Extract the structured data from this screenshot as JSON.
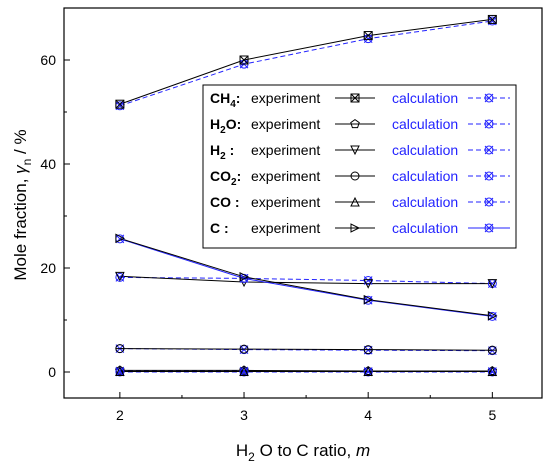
{
  "chart_data": {
    "type": "line",
    "x": [
      2,
      3,
      4,
      5
    ],
    "xlim": [
      1.55,
      5.4
    ],
    "ylim": [
      -5,
      70
    ],
    "xticks": [
      2,
      3,
      4,
      5
    ],
    "yticks": [
      0,
      20,
      40,
      60
    ],
    "xlabel": {
      "prefix": "H",
      "sub": "2",
      "mid": " O to C ratio,  ",
      "var": "m"
    },
    "ylabel": {
      "prefix": "Mole fraction,  ",
      "var": "γ",
      "sub": "n",
      "suffix": " / %"
    },
    "legend_position": "center-right",
    "legend_exp_label": "experiment",
    "legend_calc_label": "calculation",
    "exp_color": "#000000",
    "calc_color": "#2323ff",
    "series": [
      {
        "species_base": "CH",
        "species_sub": "4",
        "species_after": ": ",
        "marker": "square-x",
        "experiment": [
          51.5,
          60.0,
          64.7,
          67.8
        ],
        "calculation": [
          51.2,
          59.2,
          64.1,
          67.5
        ],
        "calc_dash": true
      },
      {
        "species_base": "H",
        "species_sub": "2",
        "species_after": "O:",
        "marker": "pentagon",
        "experiment": [
          0.3,
          0.3,
          0.2,
          0.2
        ],
        "calculation": [
          0.2,
          0.2,
          0.1,
          0.1
        ],
        "calc_dash": true
      },
      {
        "species_base": "H",
        "species_sub": "2",
        "species_after": "  : ",
        "marker": "triangle-down",
        "experiment": [
          18.4,
          17.3,
          17.0,
          17.0
        ],
        "calculation": [
          18.2,
          18.0,
          17.6,
          17.0
        ],
        "calc_dash": true
      },
      {
        "species_base": "CO",
        "species_sub": "2",
        "species_after": ":",
        "marker": "circle-line",
        "experiment": [
          4.5,
          4.4,
          4.3,
          4.2
        ],
        "calculation": [
          4.5,
          4.3,
          4.2,
          4.1
        ],
        "calc_dash": true
      },
      {
        "species_base": "CO",
        "species_sub": "",
        "species_after": " : ",
        "marker": "triangle-up",
        "experiment": [
          0.1,
          0.1,
          0.1,
          0.1
        ],
        "calculation": [
          0.0,
          0.0,
          0.0,
          0.0
        ],
        "calc_dash": true
      },
      {
        "species_base": "C",
        "species_sub": "",
        "species_after": "    : ",
        "marker": "triangle-right",
        "experiment": [
          25.7,
          18.3,
          13.9,
          10.8
        ],
        "calculation": [
          25.6,
          18.0,
          13.8,
          10.7
        ],
        "calc_dash": false
      }
    ]
  }
}
